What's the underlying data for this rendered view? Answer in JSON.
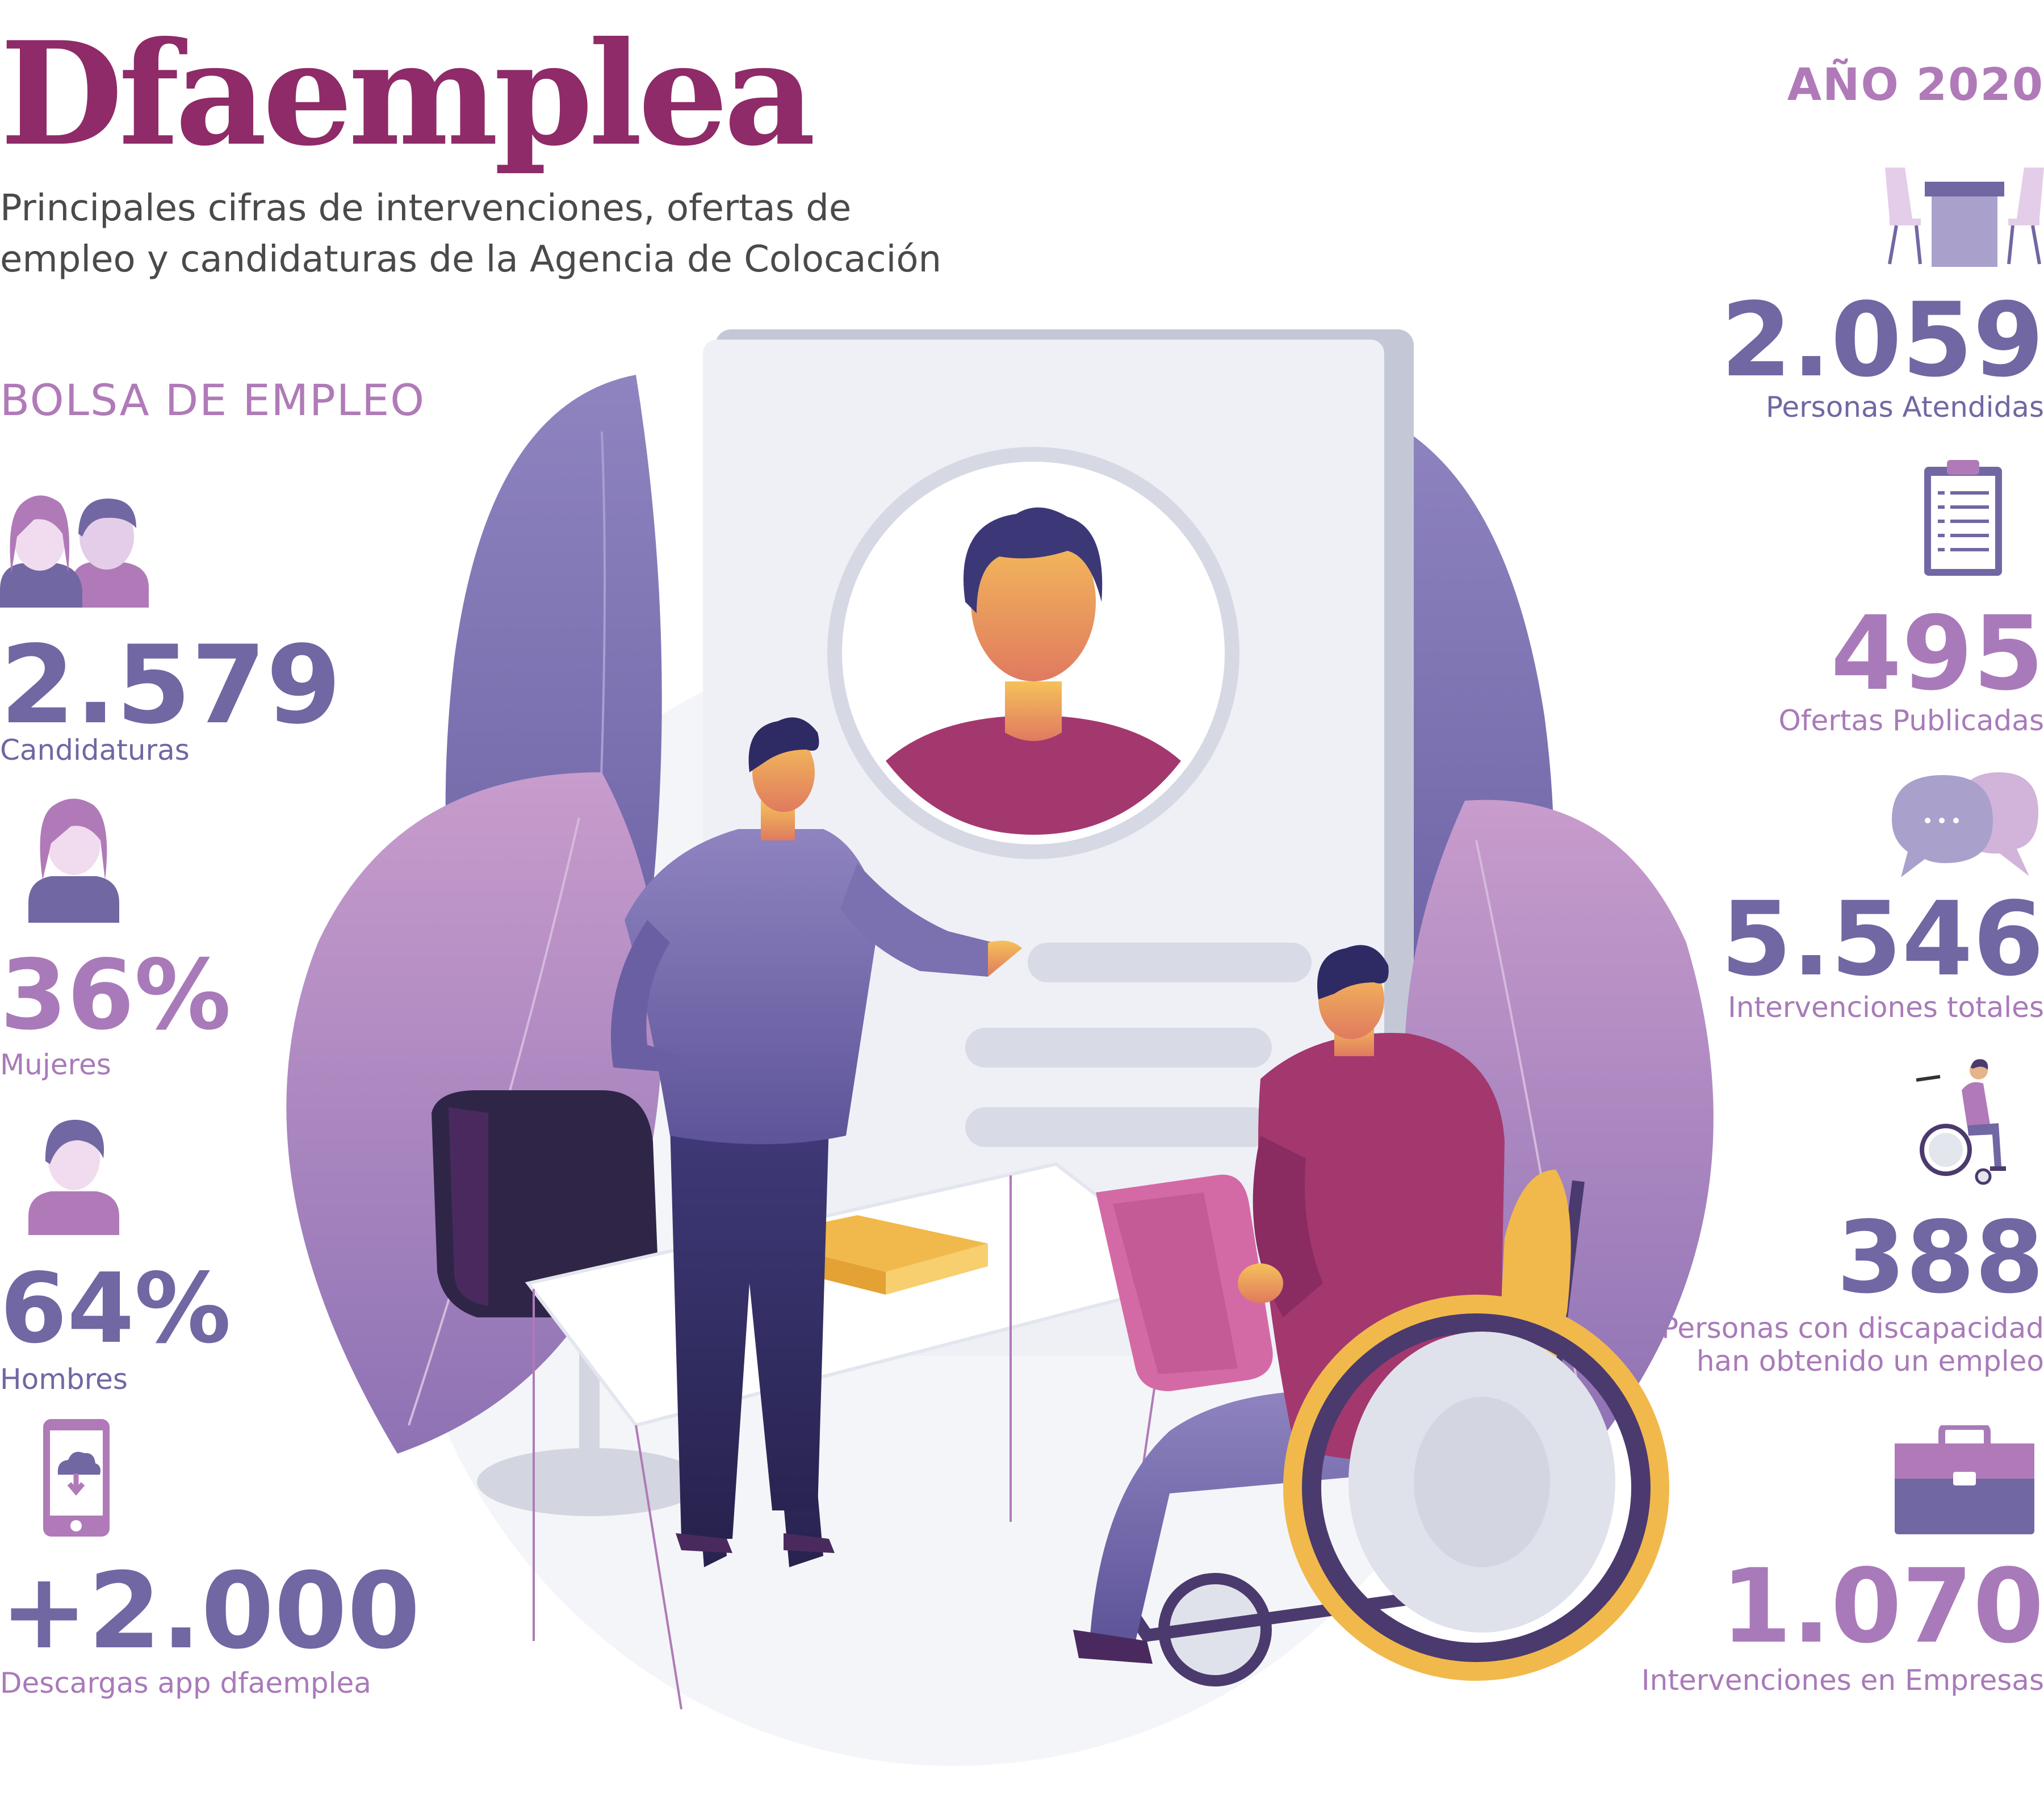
{
  "brand": "Dfaemplea",
  "subtitle_line1": "Principales cifras de intervenciones, ofertas de",
  "subtitle_line2": "empleo y candidaturas de la Agencia de Colocación",
  "year": "AÑO 2020",
  "section_title": "BOLSA DE EMPLEO",
  "left_stats": [
    {
      "value": "2.579",
      "label": "Candidaturas",
      "icon": "couple-icon"
    },
    {
      "value": "36%",
      "label": "Mujeres",
      "icon": "woman-icon"
    },
    {
      "value": "64%",
      "label": "Hombres",
      "icon": "man-icon"
    },
    {
      "value": "+2.000",
      "label": "Descargas app dfaemplea",
      "icon": "phone-download-icon"
    }
  ],
  "right_stats": [
    {
      "value": "2.059",
      "label": "Personas Atendidas",
      "icon": "meeting-table-icon"
    },
    {
      "value": "495",
      "label": "Ofertas Publicadas",
      "icon": "clipboard-icon"
    },
    {
      "value": "5.546",
      "label": "Intervenciones totales",
      "icon": "chat-bubbles-icon"
    },
    {
      "value": "388",
      "label_line1": "Personas con discapacidad",
      "label_line2": "han obtenido un empleo",
      "icon": "wheelchair-user-icon"
    },
    {
      "value": "1.070",
      "label": "Intervenciones en Empresas",
      "icon": "briefcase-icon"
    }
  ],
  "colors": {
    "brand": "#8e2b68",
    "purple": "#7167a3",
    "mauve": "#a97ab9",
    "magenta": "#a3386f"
  }
}
